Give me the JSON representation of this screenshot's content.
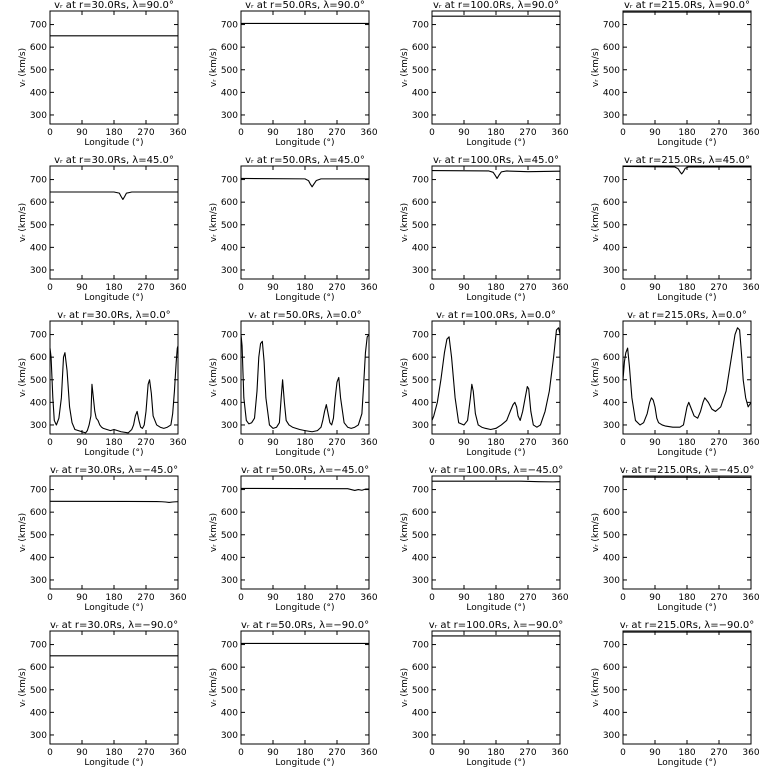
{
  "figure": {
    "xlabel": "Longitude (°)",
    "ylabel": "vᵣ (km/s)",
    "xticks": [
      0,
      90,
      180,
      270,
      360
    ],
    "yticks": [
      300,
      400,
      500,
      600,
      700
    ],
    "xlim": [
      0,
      360
    ],
    "ylim": [
      260,
      760
    ],
    "line_color": "#000000",
    "background": "#ffffff"
  },
  "chart_data": [
    {
      "type": "line",
      "title": "vᵣ at r=30.0Rs, λ=90.0°",
      "xlabel": "Longitude (°)",
      "ylabel": "vᵣ (km/s)",
      "xlim": [
        0,
        360
      ],
      "ylim": [
        260,
        760
      ],
      "series": [
        {
          "x": [
            0,
            360
          ],
          "y": [
            650,
            650
          ]
        }
      ]
    },
    {
      "type": "line",
      "title": "vᵣ at r=50.0Rs, λ=90.0°",
      "xlabel": "Longitude (°)",
      "ylabel": "vᵣ (km/s)",
      "xlim": [
        0,
        360
      ],
      "ylim": [
        260,
        760
      ],
      "series": [
        {
          "x": [
            0,
            360
          ],
          "y": [
            705,
            705
          ]
        }
      ]
    },
    {
      "type": "line",
      "title": "vᵣ at r=100.0Rs, λ=90.0°",
      "xlabel": "Longitude (°)",
      "ylabel": "vᵣ (km/s)",
      "xlim": [
        0,
        360
      ],
      "ylim": [
        260,
        760
      ],
      "series": [
        {
          "x": [
            0,
            360
          ],
          "y": [
            737,
            737
          ]
        }
      ]
    },
    {
      "type": "line",
      "title": "vᵣ at r=215.0Rs, λ=90.0°",
      "xlabel": "Longitude (°)",
      "ylabel": "vᵣ (km/s)",
      "xlim": [
        0,
        360
      ],
      "ylim": [
        260,
        760
      ],
      "series": [
        {
          "x": [
            0,
            360
          ],
          "y": [
            755,
            755
          ]
        }
      ]
    },
    {
      "type": "line",
      "title": "vᵣ at r=30.0Rs, λ=45.0°",
      "xlabel": "Longitude (°)",
      "ylabel": "vᵣ (km/s)",
      "xlim": [
        0,
        360
      ],
      "ylim": [
        260,
        760
      ],
      "series": [
        {
          "x": [
            0,
            180,
            195,
            200,
            205,
            210,
            215,
            230,
            360
          ],
          "y": [
            645,
            645,
            640,
            625,
            612,
            625,
            640,
            645,
            645
          ]
        }
      ]
    },
    {
      "type": "line",
      "title": "vᵣ at r=50.0Rs, λ=45.0°",
      "xlabel": "Longitude (°)",
      "ylabel": "vᵣ (km/s)",
      "xlim": [
        0,
        360
      ],
      "ylim": [
        260,
        760
      ],
      "series": [
        {
          "x": [
            0,
            180,
            190,
            195,
            200,
            205,
            212,
            225,
            360
          ],
          "y": [
            705,
            703,
            695,
            680,
            668,
            680,
            696,
            703,
            703
          ]
        }
      ]
    },
    {
      "type": "line",
      "title": "vᵣ at r=100.0Rs, λ=45.0°",
      "xlabel": "Longitude (°)",
      "ylabel": "vᵣ (km/s)",
      "xlim": [
        0,
        360
      ],
      "ylim": [
        260,
        760
      ],
      "series": [
        {
          "x": [
            0,
            160,
            172,
            178,
            183,
            188,
            195,
            210,
            270,
            360
          ],
          "y": [
            740,
            738,
            732,
            718,
            705,
            718,
            734,
            738,
            735,
            737
          ]
        }
      ]
    },
    {
      "type": "line",
      "title": "vᵣ at r=215.0Rs, λ=45.0°",
      "xlabel": "Longitude (°)",
      "ylabel": "vᵣ (km/s)",
      "xlim": [
        0,
        360
      ],
      "ylim": [
        260,
        760
      ],
      "series": [
        {
          "x": [
            0,
            145,
            155,
            160,
            165,
            170,
            175,
            185,
            360
          ],
          "y": [
            758,
            756,
            748,
            735,
            725,
            735,
            750,
            756,
            756
          ]
        }
      ]
    },
    {
      "type": "line",
      "title": "vᵣ at r=30.0Rs, λ=0.0°",
      "xlabel": "Longitude (°)",
      "ylabel": "vᵣ (km/s)",
      "xlim": [
        0,
        360
      ],
      "ylim": [
        260,
        760
      ],
      "series": [
        {
          "x": [
            0,
            3,
            8,
            12,
            18,
            25,
            32,
            38,
            42,
            48,
            55,
            62,
            70,
            80,
            90,
            100,
            105,
            110,
            115,
            118,
            122,
            126,
            130,
            135,
            140,
            145,
            150,
            160,
            170,
            180,
            200,
            220,
            230,
            235,
            240,
            245,
            250,
            255,
            260,
            265,
            270,
            273,
            276,
            280,
            285,
            290,
            300,
            310,
            320,
            330,
            340,
            345,
            350,
            355,
            358,
            360
          ],
          "y": [
            640,
            600,
            420,
            320,
            300,
            330,
            420,
            600,
            620,
            540,
            380,
            310,
            280,
            275,
            270,
            265,
            275,
            300,
            340,
            480,
            420,
            360,
            330,
            320,
            300,
            290,
            285,
            280,
            275,
            280,
            270,
            265,
            280,
            300,
            340,
            360,
            320,
            290,
            285,
            300,
            360,
            420,
            480,
            500,
            440,
            340,
            300,
            290,
            285,
            290,
            300,
            350,
            450,
            580,
            640,
            650
          ]
        }
      ]
    },
    {
      "type": "line",
      "title": "vᵣ at r=50.0Rs, λ=0.0°",
      "xlabel": "Longitude (°)",
      "ylabel": "vᵣ (km/s)",
      "xlim": [
        0,
        360
      ],
      "ylim": [
        260,
        760
      ],
      "series": [
        {
          "x": [
            0,
            3,
            8,
            15,
            22,
            30,
            38,
            45,
            50,
            55,
            60,
            65,
            70,
            80,
            90,
            100,
            108,
            113,
            117,
            122,
            127,
            135,
            145,
            155,
            165,
            180,
            200,
            215,
            225,
            230,
            235,
            240,
            245,
            250,
            255,
            260,
            265,
            270,
            275,
            280,
            290,
            300,
            310,
            320,
            330,
            340,
            345,
            350,
            355,
            360
          ],
          "y": [
            700,
            650,
            420,
            320,
            305,
            310,
            330,
            450,
            600,
            660,
            670,
            580,
            420,
            300,
            285,
            290,
            310,
            420,
            500,
            400,
            320,
            300,
            290,
            285,
            280,
            275,
            270,
            275,
            290,
            320,
            360,
            390,
            350,
            310,
            300,
            330,
            420,
            490,
            510,
            420,
            310,
            290,
            285,
            290,
            300,
            350,
            480,
            620,
            690,
            700
          ]
        }
      ]
    },
    {
      "type": "line",
      "title": "vᵣ at r=100.0Rs, λ=0.0°",
      "xlabel": "Longitude (°)",
      "ylabel": "vᵣ (km/s)",
      "xlim": [
        0,
        360
      ],
      "ylim": [
        260,
        760
      ],
      "series": [
        {
          "x": [
            0,
            5,
            15,
            25,
            35,
            42,
            48,
            55,
            65,
            75,
            90,
            100,
            108,
            112,
            116,
            122,
            130,
            140,
            150,
            165,
            180,
            195,
            210,
            220,
            228,
            233,
            238,
            242,
            248,
            255,
            262,
            268,
            272,
            278,
            285,
            295,
            305,
            318,
            330,
            342,
            350,
            356,
            360
          ],
          "y": [
            320,
            340,
            400,
            500,
            620,
            680,
            690,
            600,
            420,
            310,
            300,
            320,
            420,
            480,
            450,
            350,
            300,
            290,
            285,
            280,
            285,
            300,
            320,
            360,
            390,
            400,
            380,
            340,
            320,
            360,
            420,
            470,
            460,
            360,
            300,
            290,
            300,
            360,
            450,
            600,
            720,
            730,
            700
          ]
        }
      ]
    },
    {
      "type": "line",
      "title": "vᵣ at r=215.0Rs, λ=0.0°",
      "xlabel": "Longitude (°)",
      "ylabel": "vᵣ (km/s)",
      "xlim": [
        0,
        360
      ],
      "ylim": [
        260,
        760
      ],
      "series": [
        {
          "x": [
            0,
            4,
            8,
            13,
            18,
            25,
            35,
            48,
            58,
            68,
            75,
            80,
            85,
            90,
            95,
            100,
            110,
            120,
            140,
            160,
            170,
            175,
            180,
            185,
            190,
            200,
            210,
            218,
            225,
            230,
            240,
            250,
            260,
            275,
            290,
            300,
            310,
            315,
            322,
            328,
            333,
            338,
            345,
            352,
            360
          ],
          "y": [
            500,
            580,
            620,
            640,
            560,
            420,
            320,
            300,
            310,
            350,
            400,
            420,
            410,
            380,
            330,
            310,
            300,
            295,
            290,
            290,
            300,
            340,
            380,
            400,
            380,
            340,
            330,
            360,
            400,
            420,
            400,
            370,
            360,
            380,
            450,
            550,
            650,
            700,
            730,
            720,
            620,
            500,
            420,
            380,
            400
          ]
        }
      ]
    },
    {
      "type": "line",
      "title": "vᵣ at r=30.0Rs, λ=−45.0°",
      "xlabel": "Longitude (°)",
      "ylabel": "vᵣ (km/s)",
      "xlim": [
        0,
        360
      ],
      "ylim": [
        260,
        760
      ],
      "series": [
        {
          "x": [
            0,
            300,
            315,
            325,
            335,
            345,
            355,
            360
          ],
          "y": [
            648,
            647,
            646,
            645,
            643,
            645,
            646,
            646
          ]
        }
      ]
    },
    {
      "type": "line",
      "title": "vᵣ at r=50.0Rs, λ=−45.0°",
      "xlabel": "Longitude (°)",
      "ylabel": "vᵣ (km/s)",
      "xlim": [
        0,
        360
      ],
      "ylim": [
        260,
        760
      ],
      "series": [
        {
          "x": [
            0,
            280,
            300,
            310,
            320,
            330,
            340,
            350,
            360
          ],
          "y": [
            705,
            704,
            704,
            700,
            696,
            700,
            697,
            702,
            702
          ]
        }
      ]
    },
    {
      "type": "line",
      "title": "vᵣ at r=100.0Rs, λ=−45.0°",
      "xlabel": "Longitude (°)",
      "ylabel": "vᵣ (km/s)",
      "xlim": [
        0,
        360
      ],
      "ylim": [
        260,
        760
      ],
      "series": [
        {
          "x": [
            0,
            250,
            300,
            340,
            360
          ],
          "y": [
            737,
            737,
            735,
            734,
            735
          ]
        }
      ]
    },
    {
      "type": "line",
      "title": "vᵣ at r=215.0Rs, λ=−45.0°",
      "xlabel": "Longitude (°)",
      "ylabel": "vᵣ (km/s)",
      "xlim": [
        0,
        360
      ],
      "ylim": [
        260,
        760
      ],
      "series": [
        {
          "x": [
            0,
            360
          ],
          "y": [
            755,
            754
          ]
        }
      ]
    },
    {
      "type": "line",
      "title": "vᵣ at r=30.0Rs, λ=−90.0°",
      "xlabel": "Longitude (°)",
      "ylabel": "vᵣ (km/s)",
      "xlim": [
        0,
        360
      ],
      "ylim": [
        260,
        760
      ],
      "series": [
        {
          "x": [
            0,
            360
          ],
          "y": [
            650,
            650
          ]
        }
      ]
    },
    {
      "type": "line",
      "title": "vᵣ at r=50.0Rs, λ=−90.0°",
      "xlabel": "Longitude (°)",
      "ylabel": "vᵣ (km/s)",
      "xlim": [
        0,
        360
      ],
      "ylim": [
        260,
        760
      ],
      "series": [
        {
          "x": [
            0,
            360
          ],
          "y": [
            705,
            705
          ]
        }
      ]
    },
    {
      "type": "line",
      "title": "vᵣ at r=100.0Rs, λ=−90.0°",
      "xlabel": "Longitude (°)",
      "ylabel": "vᵣ (km/s)",
      "xlim": [
        0,
        360
      ],
      "ylim": [
        260,
        760
      ],
      "series": [
        {
          "x": [
            0,
            360
          ],
          "y": [
            738,
            738
          ]
        }
      ]
    },
    {
      "type": "line",
      "title": "vᵣ at r=215.0Rs, λ=−90.0°",
      "xlabel": "Longitude (°)",
      "ylabel": "vᵣ (km/s)",
      "xlim": [
        0,
        360
      ],
      "ylim": [
        260,
        760
      ],
      "series": [
        {
          "x": [
            0,
            360
          ],
          "y": [
            755,
            755
          ]
        }
      ]
    }
  ]
}
